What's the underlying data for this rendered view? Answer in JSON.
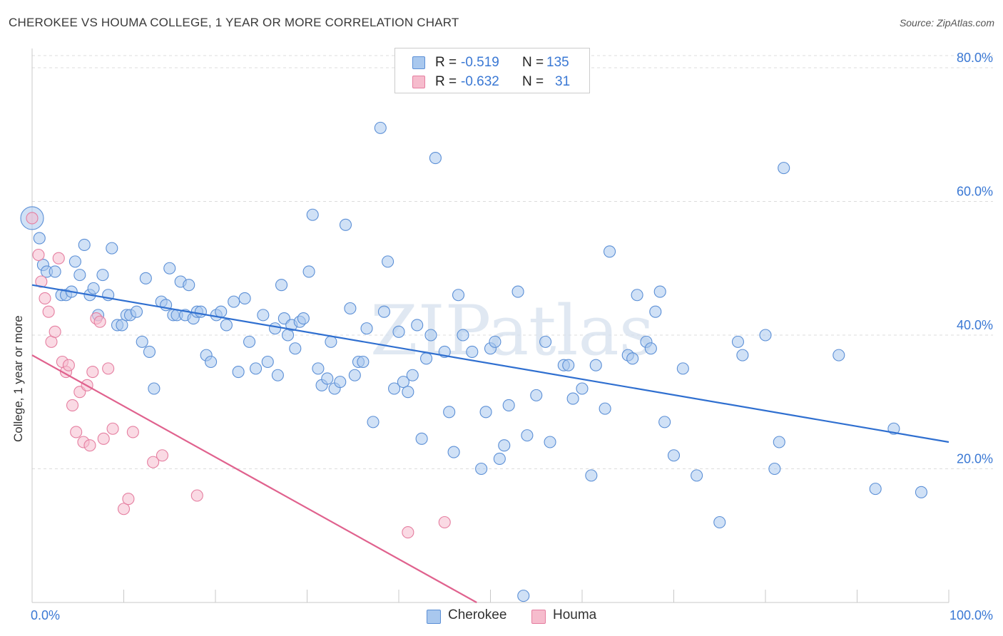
{
  "title": "CHEROKEE VS HOUMA COLLEGE, 1 YEAR OR MORE CORRELATION CHART",
  "source": "Source: ZipAtlas.com",
  "watermark": "ZIPatlas",
  "legend": {
    "rows": [
      {
        "r_label": "R =",
        "r_value": "-0.519",
        "n_label": "N =",
        "n_value": "135",
        "color": "#a9c8ee",
        "border": "#5b8fd6"
      },
      {
        "r_label": "R =",
        "r_value": "-0.632",
        "n_label": "N =",
        "n_value": "31",
        "color": "#f6bccd",
        "border": "#e57ea0"
      }
    ]
  },
  "bottom_legend": [
    {
      "label": "Cherokee",
      "color": "#a9c8ee",
      "border": "#5b8fd6"
    },
    {
      "label": "Houma",
      "color": "#f6bccd",
      "border": "#e57ea0"
    }
  ],
  "chart_data": {
    "type": "scatter",
    "title": "CHEROKEE VS HOUMA COLLEGE, 1 YEAR OR MORE CORRELATION CHART",
    "xlabel": "",
    "ylabel": "College, 1 year or more",
    "xlim": [
      0,
      100
    ],
    "ylim": [
      0,
      80
    ],
    "x_tick_labels": [
      "0.0%",
      "100.0%"
    ],
    "y_ticks": [
      20,
      40,
      60,
      80
    ],
    "y_tick_labels": [
      "20.0%",
      "40.0%",
      "60.0%",
      "80.0%"
    ],
    "grid": "horizontal dashed",
    "legend_position": "top-center",
    "series": [
      {
        "name": "Cherokee",
        "color": "#5b8fd6",
        "fill": "#a9c8ee",
        "trend": {
          "x": [
            0,
            100
          ],
          "y": [
            47.5,
            24
          ]
        },
        "points": [
          [
            0,
            57.5
          ],
          [
            0.8,
            54.5
          ],
          [
            1.2,
            50.5
          ],
          [
            1.6,
            49.5
          ],
          [
            2.5,
            49.5
          ],
          [
            3.2,
            46
          ],
          [
            3.7,
            46
          ],
          [
            4.3,
            46.5
          ],
          [
            4.7,
            51
          ],
          [
            5.2,
            49
          ],
          [
            5.7,
            53.5
          ],
          [
            6.3,
            46
          ],
          [
            6.7,
            47
          ],
          [
            7.2,
            43
          ],
          [
            7.7,
            49
          ],
          [
            8.3,
            46
          ],
          [
            8.7,
            53
          ],
          [
            9.3,
            41.5
          ],
          [
            9.8,
            41.5
          ],
          [
            10.3,
            43
          ],
          [
            10.7,
            43
          ],
          [
            11.4,
            43.5
          ],
          [
            12.0,
            39
          ],
          [
            12.4,
            48.5
          ],
          [
            12.8,
            37.5
          ],
          [
            13.3,
            32
          ],
          [
            14.1,
            45
          ],
          [
            14.6,
            44.5
          ],
          [
            15.0,
            50
          ],
          [
            15.4,
            43
          ],
          [
            15.8,
            43
          ],
          [
            16.2,
            48
          ],
          [
            16.7,
            43
          ],
          [
            17.1,
            47.5
          ],
          [
            17.6,
            42.5
          ],
          [
            18.0,
            43.5
          ],
          [
            18.4,
            43.5
          ],
          [
            19.0,
            37
          ],
          [
            19.5,
            36
          ],
          [
            20.1,
            43
          ],
          [
            20.6,
            43.5
          ],
          [
            21.2,
            41.5
          ],
          [
            22.0,
            45
          ],
          [
            22.5,
            34.5
          ],
          [
            23.2,
            45.5
          ],
          [
            23.7,
            39
          ],
          [
            24.4,
            35
          ],
          [
            25.2,
            43
          ],
          [
            25.7,
            36
          ],
          [
            26.5,
            41
          ],
          [
            26.8,
            34
          ],
          [
            27.2,
            47.5
          ],
          [
            27.5,
            42.5
          ],
          [
            27.9,
            40
          ],
          [
            28.3,
            41.5
          ],
          [
            28.7,
            38
          ],
          [
            29.2,
            42
          ],
          [
            29.6,
            42.5
          ],
          [
            30.2,
            49.5
          ],
          [
            30.6,
            58
          ],
          [
            31.2,
            35
          ],
          [
            31.6,
            32.5
          ],
          [
            32.2,
            33.5
          ],
          [
            32.6,
            39
          ],
          [
            33.0,
            32
          ],
          [
            33.6,
            33
          ],
          [
            34.2,
            56.5
          ],
          [
            34.7,
            44
          ],
          [
            35.2,
            34
          ],
          [
            35.6,
            36
          ],
          [
            36.1,
            36
          ],
          [
            36.5,
            41
          ],
          [
            37.2,
            27
          ],
          [
            38.0,
            71
          ],
          [
            38.4,
            43.5
          ],
          [
            38.8,
            51
          ],
          [
            39.5,
            32
          ],
          [
            40.0,
            40.5
          ],
          [
            40.5,
            33
          ],
          [
            41.0,
            31.5
          ],
          [
            41.5,
            34
          ],
          [
            42.0,
            41.5
          ],
          [
            42.5,
            24.5
          ],
          [
            43.0,
            36.5
          ],
          [
            43.5,
            40
          ],
          [
            44.0,
            66.5
          ],
          [
            45.0,
            37.5
          ],
          [
            45.5,
            28.5
          ],
          [
            46.0,
            22.5
          ],
          [
            46.5,
            46
          ],
          [
            47.0,
            40
          ],
          [
            48.0,
            37.5
          ],
          [
            49.0,
            20
          ],
          [
            49.5,
            28.5
          ],
          [
            50.0,
            38
          ],
          [
            50.5,
            39
          ],
          [
            51.0,
            21.5
          ],
          [
            51.5,
            23.5
          ],
          [
            52.0,
            29.5
          ],
          [
            53.0,
            46.5
          ],
          [
            53.6,
            1
          ],
          [
            54.0,
            25
          ],
          [
            55.0,
            31
          ],
          [
            56.0,
            39
          ],
          [
            56.5,
            24
          ],
          [
            58.0,
            35.5
          ],
          [
            58.5,
            35.5
          ],
          [
            59.0,
            30.5
          ],
          [
            60.0,
            32
          ],
          [
            61.0,
            19
          ],
          [
            61.5,
            35.5
          ],
          [
            62.5,
            29
          ],
          [
            63.0,
            52.5
          ],
          [
            65.0,
            37
          ],
          [
            65.5,
            36.5
          ],
          [
            66.0,
            46
          ],
          [
            67.0,
            39
          ],
          [
            67.5,
            38
          ],
          [
            68.0,
            43.5
          ],
          [
            68.5,
            46.5
          ],
          [
            69.0,
            27
          ],
          [
            70.0,
            22
          ],
          [
            71.0,
            35
          ],
          [
            72.5,
            19
          ],
          [
            75.0,
            12
          ],
          [
            77.0,
            39
          ],
          [
            77.5,
            37
          ],
          [
            80.0,
            40
          ],
          [
            81.0,
            20
          ],
          [
            81.5,
            24
          ],
          [
            82.0,
            65
          ],
          [
            88.0,
            37
          ],
          [
            92.0,
            17
          ],
          [
            94.0,
            26
          ],
          [
            97.0,
            16.5
          ]
        ]
      },
      {
        "name": "Houma",
        "color": "#e57ea0",
        "fill": "#f6bccd",
        "trend": {
          "x": [
            0,
            48.5
          ],
          "y": [
            37,
            0
          ]
        },
        "points": [
          [
            0,
            57.5
          ],
          [
            0.7,
            52
          ],
          [
            1.0,
            48
          ],
          [
            1.4,
            45.5
          ],
          [
            1.8,
            43.5
          ],
          [
            2.1,
            39
          ],
          [
            2.5,
            40.5
          ],
          [
            2.9,
            51.5
          ],
          [
            3.3,
            36
          ],
          [
            3.7,
            34.5
          ],
          [
            4.0,
            35.5
          ],
          [
            4.4,
            29.5
          ],
          [
            4.8,
            25.5
          ],
          [
            5.2,
            31.5
          ],
          [
            5.6,
            24
          ],
          [
            6.0,
            32.5
          ],
          [
            6.3,
            23.5
          ],
          [
            6.6,
            34.5
          ],
          [
            7.0,
            42.5
          ],
          [
            7.4,
            42
          ],
          [
            7.8,
            24.5
          ],
          [
            8.3,
            35
          ],
          [
            8.8,
            26
          ],
          [
            10.0,
            14
          ],
          [
            10.5,
            15.5
          ],
          [
            11.0,
            25.5
          ],
          [
            13.2,
            21
          ],
          [
            14.2,
            22
          ],
          [
            18.0,
            16
          ],
          [
            41.0,
            10.5
          ],
          [
            45.0,
            12
          ]
        ]
      }
    ]
  }
}
